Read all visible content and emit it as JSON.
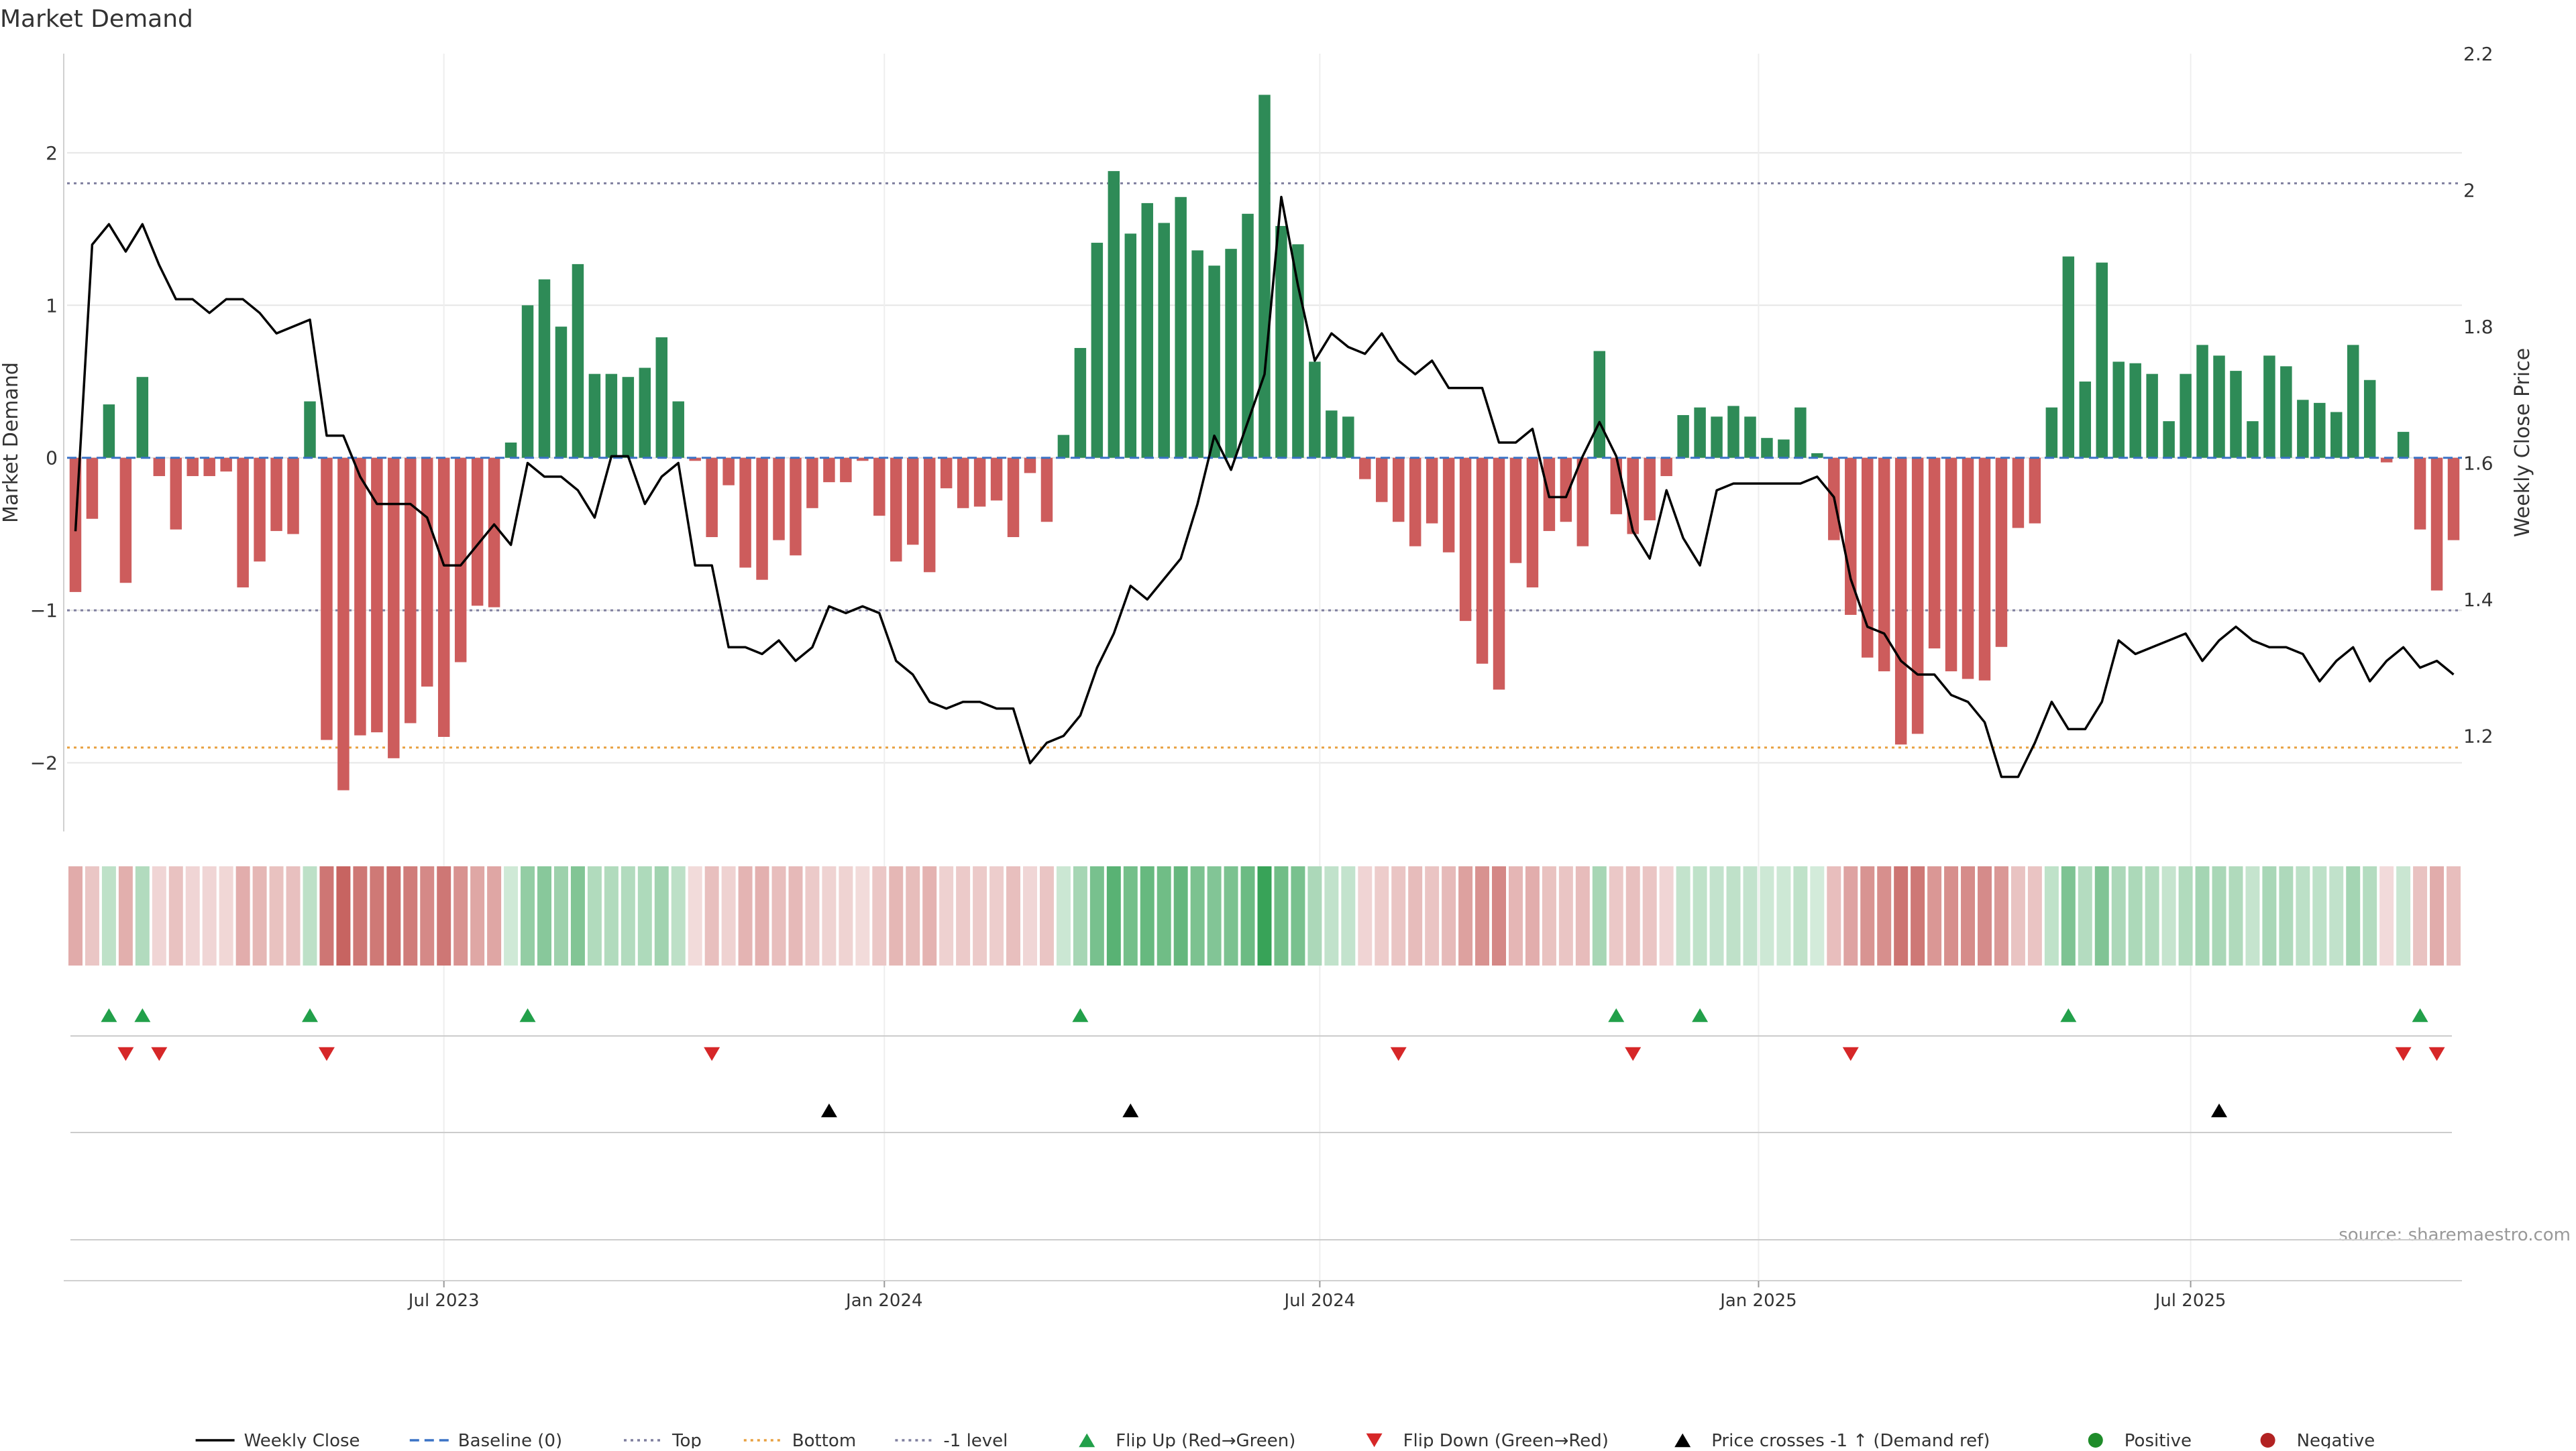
{
  "title": "Market Demand",
  "source": "source: sharemaestro.com",
  "colors": {
    "positive_bar": "#2e8b57",
    "negative_bar": "#cd5c5c",
    "price_line": "#000000",
    "baseline": "#3b73c6",
    "top_line": "#7f7f9f",
    "bottom_line": "#e8a040",
    "minus1_line": "#7f7f9f",
    "flip_up": "#22a04a",
    "flip_down": "#d62728",
    "cross_marker": "#000000",
    "positive_dot": "#1f8c2a",
    "negative_dot": "#b22222",
    "grid": "#e6e6e6"
  },
  "legend": [
    {
      "label": "Weekly Close",
      "kind": "line-solid",
      "color": "#000000"
    },
    {
      "label": "Baseline (0)",
      "kind": "line-dash",
      "color": "#3b73c6"
    },
    {
      "label": "Top",
      "kind": "line-dot",
      "color": "#7f7f9f"
    },
    {
      "label": "Bottom",
      "kind": "line-dot",
      "color": "#e8a040"
    },
    {
      "label": "-1 level",
      "kind": "line-dot",
      "color": "#7f7f9f"
    },
    {
      "label": "Flip Up (Red→Green)",
      "kind": "tri-up",
      "color": "#22a04a"
    },
    {
      "label": "Flip Down (Green→Red)",
      "kind": "tri-down",
      "color": "#d62728"
    },
    {
      "label": "Price crosses -1 ↑ (Demand ref)",
      "kind": "tri-up",
      "color": "#000000"
    },
    {
      "label": "Positive",
      "kind": "dot",
      "color": "#1f8c2a"
    },
    {
      "label": "Negative",
      "kind": "dot",
      "color": "#b22222"
    }
  ],
  "chart_data": {
    "type": "bar",
    "title": "Market Demand",
    "ylabel": "Market Demand",
    "y2label": "Weekly Close Price",
    "ylim": [
      -2.45,
      2.65
    ],
    "y_ticks": [
      -2,
      -1,
      0,
      1,
      2
    ],
    "y2lim": [
      1.06,
      2.2
    ],
    "y2_ticks": [
      1.2,
      1.4,
      1.6,
      1.8,
      2.0,
      2.2
    ],
    "y2_tick_labels": [
      "1.2",
      "1.4",
      "1.6",
      "1.8",
      "2",
      "2.2"
    ],
    "x_ticks": [
      {
        "label": "Jul 2023",
        "week": 22.5
      },
      {
        "label": "Jan 2024",
        "week": 48.8
      },
      {
        "label": "Jul 2024",
        "week": 74.8
      },
      {
        "label": "Jan 2025",
        "week": 101.0
      },
      {
        "label": "Jul 2025",
        "week": 126.8
      }
    ],
    "levels": {
      "top": 1.8,
      "bottom": -1.9,
      "minus1": -1.0,
      "baseline": 0
    },
    "demand": [
      -0.88,
      -0.4,
      0.35,
      -0.82,
      0.53,
      -0.12,
      -0.47,
      -0.12,
      -0.12,
      -0.09,
      -0.85,
      -0.68,
      -0.48,
      -0.5,
      0.37,
      -1.85,
      -2.18,
      -1.82,
      -1.8,
      -1.97,
      -1.74,
      -1.5,
      -1.83,
      -1.34,
      -0.97,
      -0.98,
      0.1,
      1.0,
      1.17,
      0.86,
      1.27,
      0.55,
      0.55,
      0.53,
      0.59,
      0.79,
      0.37,
      -0.02,
      -0.52,
      -0.18,
      -0.72,
      -0.8,
      -0.54,
      -0.64,
      -0.33,
      -0.16,
      -0.16,
      -0.02,
      -0.38,
      -0.68,
      -0.57,
      -0.75,
      -0.2,
      -0.33,
      -0.32,
      -0.28,
      -0.52,
      -0.1,
      -0.42,
      0.15,
      0.72,
      1.41,
      1.88,
      1.47,
      1.67,
      1.54,
      1.71,
      1.36,
      1.26,
      1.37,
      1.6,
      2.38,
      1.52,
      1.4,
      0.63,
      0.31,
      0.27,
      -0.14,
      -0.29,
      -0.42,
      -0.58,
      -0.43,
      -0.62,
      -1.07,
      -1.35,
      -1.52,
      -0.69,
      -0.85,
      -0.48,
      -0.42,
      -0.58,
      0.7,
      -0.37,
      -0.5,
      -0.41,
      -0.12,
      0.28,
      0.33,
      0.27,
      0.34,
      0.27,
      0.13,
      0.12,
      0.33,
      0.03,
      -0.54,
      -1.03,
      -1.31,
      -1.4,
      -1.88,
      -1.81,
      -1.25,
      -1.4,
      -1.45,
      -1.46,
      -1.24,
      -0.46,
      -0.43,
      0.33,
      1.32,
      0.5,
      1.28,
      0.63,
      0.62,
      0.55,
      0.24,
      0.55,
      0.74,
      0.67,
      0.57,
      0.24,
      0.67,
      0.6,
      0.38,
      0.36,
      0.3,
      0.74,
      0.51,
      -0.03,
      0.17,
      -0.47,
      -0.87,
      -0.54
    ],
    "weekly_close": [
      1.5,
      1.92,
      1.95,
      1.91,
      1.95,
      1.89,
      1.84,
      1.84,
      1.82,
      1.84,
      1.84,
      1.82,
      1.79,
      1.8,
      1.81,
      1.64,
      1.64,
      1.58,
      1.54,
      1.54,
      1.54,
      1.52,
      1.45,
      1.45,
      1.48,
      1.51,
      1.48,
      1.6,
      1.58,
      1.58,
      1.56,
      1.52,
      1.61,
      1.61,
      1.54,
      1.58,
      1.6,
      1.45,
      1.45,
      1.33,
      1.33,
      1.32,
      1.34,
      1.31,
      1.33,
      1.39,
      1.38,
      1.39,
      1.38,
      1.31,
      1.29,
      1.25,
      1.24,
      1.25,
      1.25,
      1.24,
      1.24,
      1.16,
      1.19,
      1.2,
      1.23,
      1.3,
      1.35,
      1.42,
      1.4,
      1.43,
      1.46,
      1.54,
      1.64,
      1.59,
      1.66,
      1.73,
      1.99,
      1.86,
      1.75,
      1.79,
      1.77,
      1.76,
      1.79,
      1.75,
      1.73,
      1.75,
      1.71,
      1.71,
      1.71,
      1.63,
      1.63,
      1.65,
      1.55,
      1.55,
      1.61,
      1.66,
      1.61,
      1.5,
      1.46,
      1.56,
      1.49,
      1.45,
      1.56,
      1.57,
      1.57,
      1.57,
      1.57,
      1.57,
      1.58,
      1.55,
      1.43,
      1.36,
      1.35,
      1.31,
      1.29,
      1.29,
      1.26,
      1.25,
      1.22,
      1.14,
      1.14,
      1.19,
      1.25,
      1.21,
      1.21,
      1.25,
      1.34,
      1.32,
      1.33,
      1.34,
      1.35,
      1.31,
      1.34,
      1.36,
      1.34,
      1.33,
      1.33,
      1.32,
      1.28,
      1.31,
      1.33,
      1.28,
      1.31,
      1.33,
      1.3,
      1.31,
      1.29
    ]
  },
  "signals": {
    "flip_up_weeks": [
      2,
      4,
      14,
      27,
      60,
      92,
      97,
      119,
      140
    ],
    "flip_down_weeks": [
      3,
      5,
      15,
      38,
      79,
      93,
      106,
      139,
      141
    ],
    "price_cross_weeks": [
      45,
      63,
      128
    ]
  }
}
